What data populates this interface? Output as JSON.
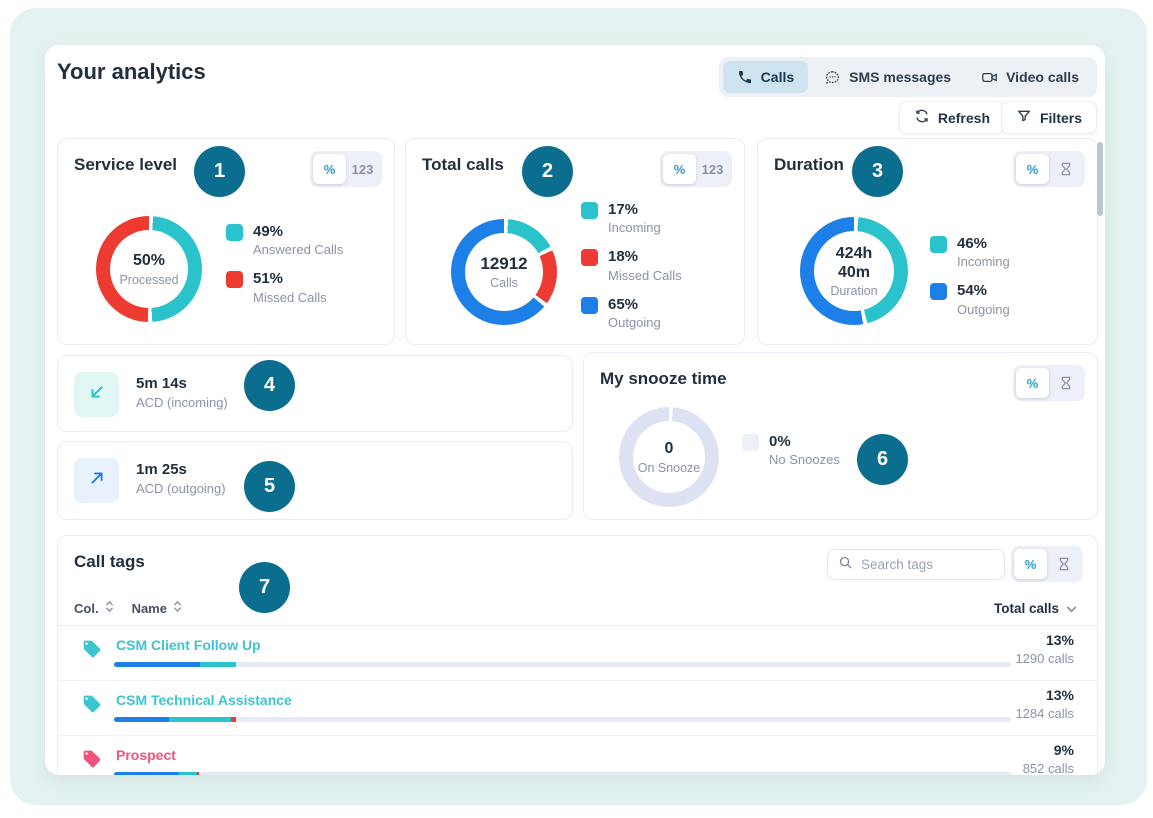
{
  "page_title": "Your analytics",
  "toolbar": {
    "tabs": [
      {
        "label": "Calls",
        "icon": "phone-icon",
        "active": true
      },
      {
        "label": "SMS messages",
        "icon": "chat-icon",
        "active": false
      },
      {
        "label": "Video calls",
        "icon": "video-icon",
        "active": false
      }
    ],
    "refresh_label": "Refresh",
    "filters_label": "Filters"
  },
  "annotation_badges": {
    "color": "#0b6e8e",
    "items": [
      "1",
      "2",
      "3",
      "4",
      "5",
      "6",
      "7"
    ]
  },
  "cards": {
    "service_level": {
      "title": "Service level",
      "badge": "1",
      "unit_toggle": {
        "options": [
          "%",
          "123"
        ],
        "active": "%"
      },
      "donut": {
        "center_value": "50%",
        "center_label": "Processed",
        "segments": [
          {
            "label": "Answered Calls",
            "color": "#2bc3cb",
            "pct": 49
          },
          {
            "label": "Missed Calls",
            "color": "#ee3b31",
            "pct": 51
          }
        ]
      },
      "legend": [
        {
          "value": "49%",
          "label": "Answered Calls",
          "color": "#2bc3cb"
        },
        {
          "value": "51%",
          "label": "Missed Calls",
          "color": "#ee3b31"
        }
      ]
    },
    "total_calls": {
      "title": "Total calls",
      "badge": "2",
      "unit_toggle": {
        "options": [
          "%",
          "123"
        ],
        "active": "%"
      },
      "donut": {
        "center_value": "12912",
        "center_label": "Calls",
        "segments": [
          {
            "label": "Incoming",
            "color": "#2bc3cb",
            "pct": 17
          },
          {
            "label": "Missed Calls",
            "color": "#ee3b31",
            "pct": 18
          },
          {
            "label": "Outgoing",
            "color": "#1d7fe8",
            "pct": 65
          }
        ]
      },
      "legend": [
        {
          "value": "17%",
          "label": "Incoming",
          "color": "#2bc3cb"
        },
        {
          "value": "18%",
          "label": "Missed Calls",
          "color": "#ee3b31"
        },
        {
          "value": "65%",
          "label": "Outgoing",
          "color": "#1d7fe8"
        }
      ]
    },
    "duration": {
      "title": "Duration",
      "badge": "3",
      "unit_toggle": {
        "options": [
          "%",
          "hourglass"
        ],
        "active": "%"
      },
      "donut": {
        "center_value": "424h 40m",
        "center_label": "Duration",
        "segments": [
          {
            "label": "Incoming",
            "color": "#2bc3cb",
            "pct": 46
          },
          {
            "label": "Outgoing",
            "color": "#1d7fe8",
            "pct": 54
          }
        ]
      },
      "legend": [
        {
          "value": "46%",
          "label": "Incoming",
          "color": "#2bc3cb"
        },
        {
          "value": "54%",
          "label": "Outgoing",
          "color": "#1d7fe8"
        }
      ]
    },
    "acd_incoming": {
      "badge": "4",
      "value": "5m 14s",
      "label": "ACD (incoming)"
    },
    "acd_outgoing": {
      "badge": "5",
      "value": "1m 25s",
      "label": "ACD (outgoing)"
    },
    "snooze": {
      "title": "My snooze time",
      "badge": "6",
      "unit_toggle": {
        "options": [
          "%",
          "hourglass"
        ],
        "active": "%"
      },
      "donut": {
        "center_value": "0",
        "center_label": "On Snooze",
        "segments": [
          {
            "label": "No Snoozes",
            "color": "#dde2f2",
            "pct": 100
          }
        ]
      },
      "legend": [
        {
          "value": "0%",
          "label": "No Snoozes",
          "color": "#edf0f9"
        }
      ]
    }
  },
  "call_tags": {
    "title": "Call tags",
    "badge": "7",
    "search_placeholder": "Search tags",
    "unit_toggle": {
      "options": [
        "%",
        "hourglass"
      ],
      "active": "%"
    },
    "columns": [
      {
        "label": "Col.",
        "sortable": true
      },
      {
        "label": "Name",
        "sortable": true
      }
    ],
    "sort_dropdown": "Total calls",
    "rows": [
      {
        "name": "CSM Client Follow Up",
        "color": "#3cc4d1",
        "percent": "13%",
        "calls": "1290 calls",
        "bar": [
          {
            "color": "#1d7fe8",
            "pct": 9.6
          },
          {
            "color": "#2bc3cb",
            "pct": 4.0
          }
        ]
      },
      {
        "name": "CSM Technical Assistance",
        "color": "#3cc4d1",
        "percent": "13%",
        "calls": "1284 calls",
        "bar": [
          {
            "color": "#1d7fe8",
            "pct": 6.1
          },
          {
            "color": "#2bc3cb",
            "pct": 7.0
          },
          {
            "color": "#ee3b31",
            "pct": 0.5
          }
        ]
      },
      {
        "name": "Prospect",
        "color": "#f0537b",
        "percent": "9%",
        "calls": "852 calls",
        "bar": [
          {
            "color": "#1d7fe8",
            "pct": 7.3
          },
          {
            "color": "#2bc3cb",
            "pct": 1.9
          },
          {
            "color": "#ee3b31",
            "pct": 0.3
          }
        ]
      }
    ]
  }
}
